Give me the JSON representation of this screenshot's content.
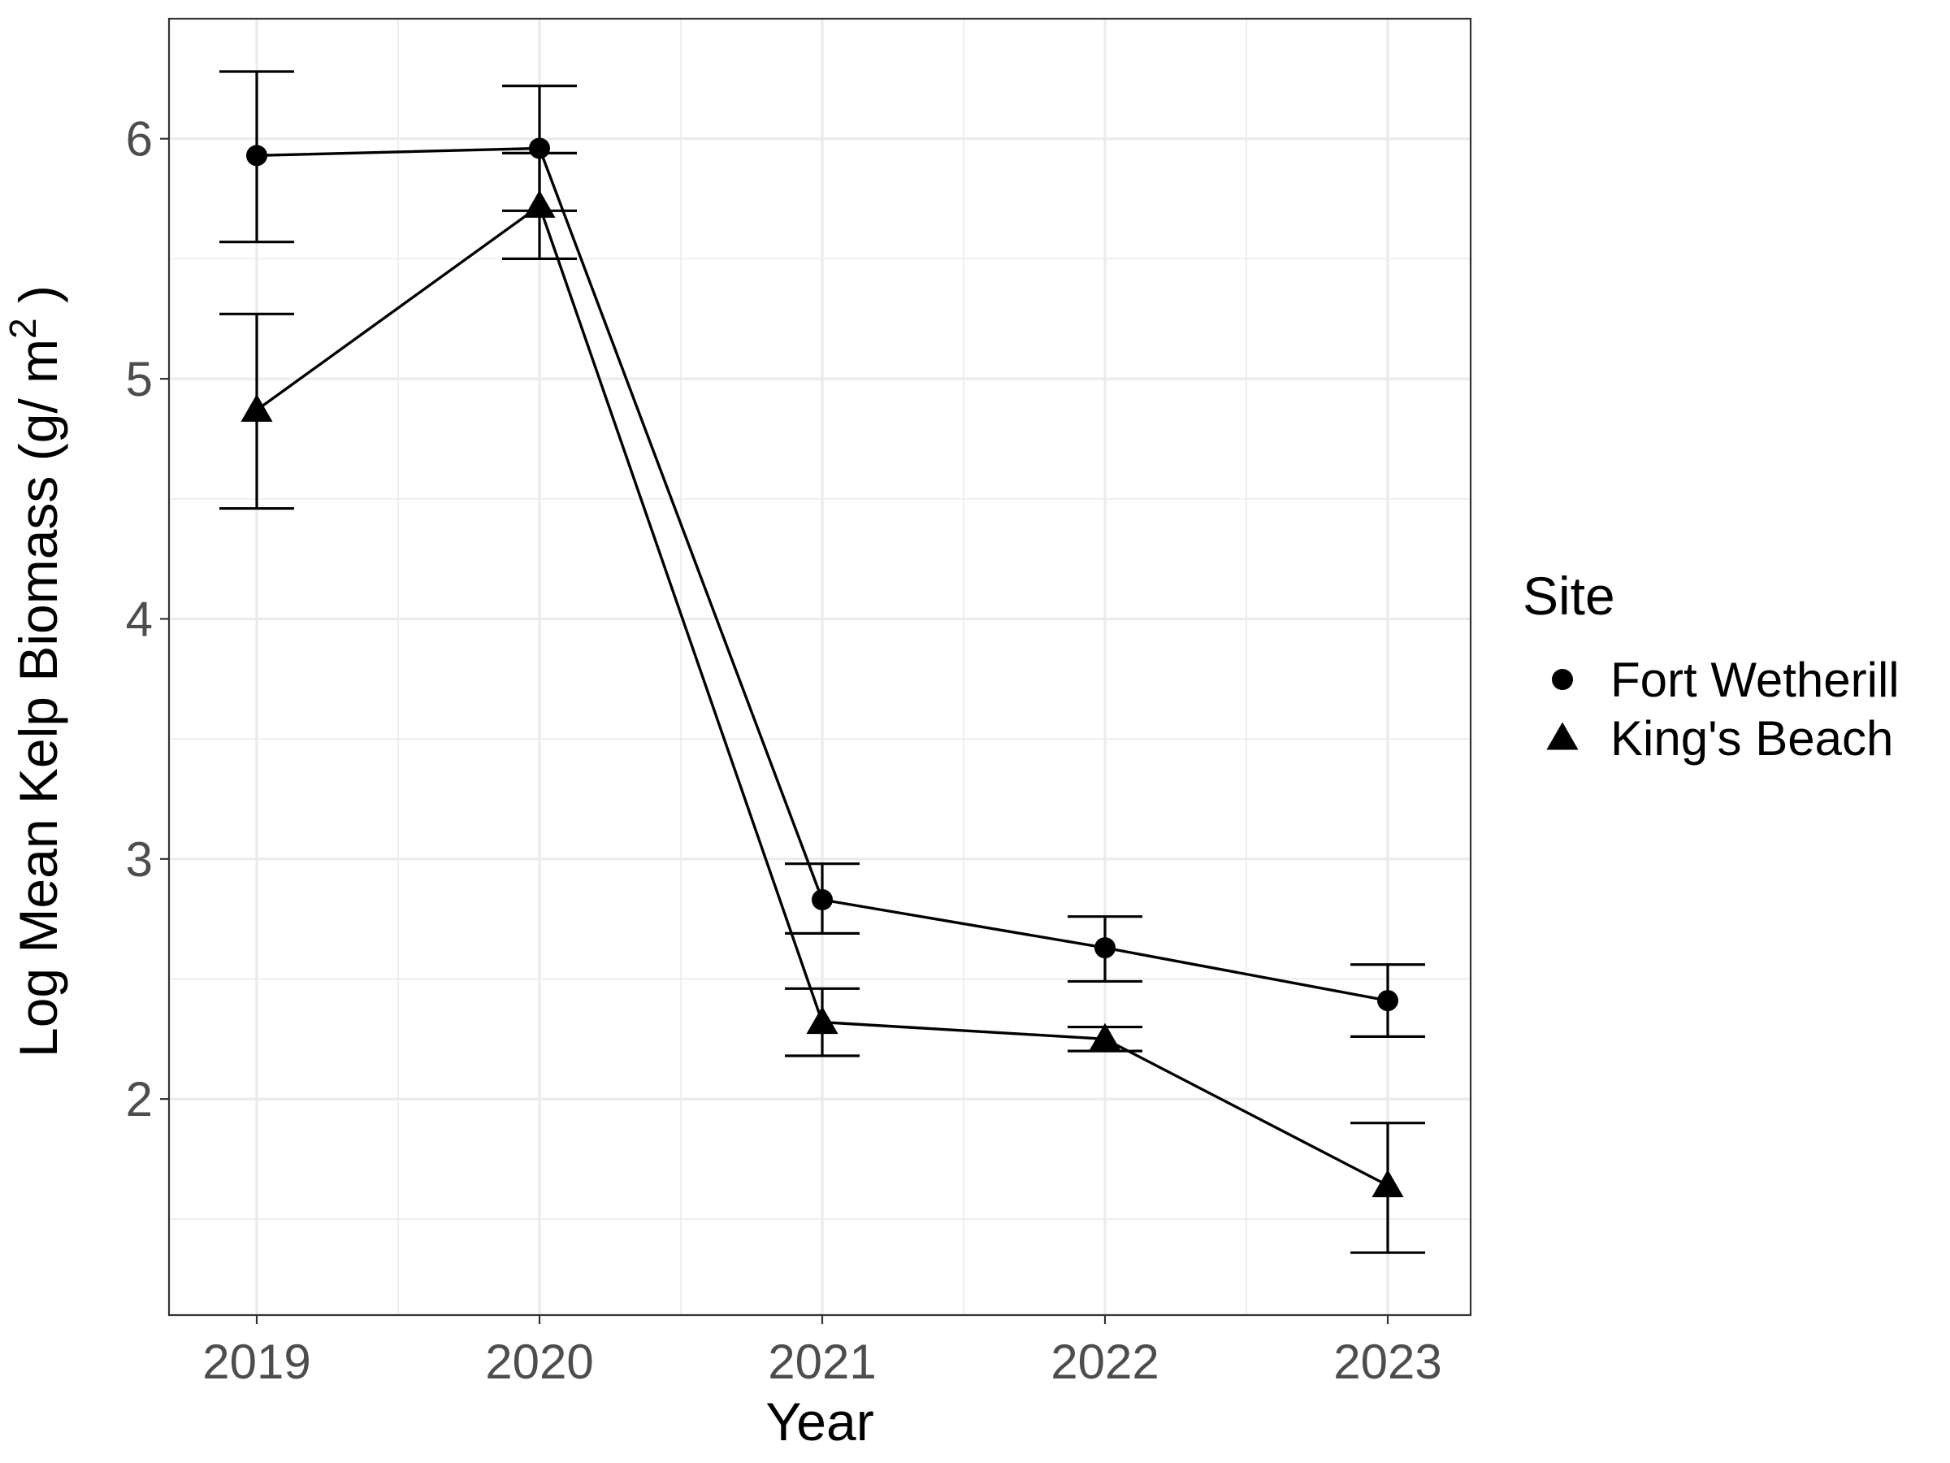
{
  "chart_data": {
    "type": "line",
    "xlabel": "Year",
    "ylabel": "Log Mean Kelp Biomass (g/ m",
    "ylabel_superscript": "2",
    "ylabel_close": " )",
    "categories": [
      "2019",
      "2020",
      "2021",
      "2022",
      "2023"
    ],
    "ylim": [
      1.1,
      6.5
    ],
    "yticks": [
      2,
      3,
      4,
      5,
      6
    ],
    "grid": true,
    "legend": {
      "title": "Site",
      "position": "right"
    },
    "series": [
      {
        "name": "Fort Wetherill",
        "marker": "circle",
        "values": [
          5.93,
          5.96,
          2.83,
          2.63,
          2.41
        ],
        "lower": [
          5.57,
          5.7,
          2.69,
          2.49,
          2.26
        ],
        "upper": [
          6.28,
          6.22,
          2.98,
          2.76,
          2.56
        ]
      },
      {
        "name": "King's Beach",
        "marker": "triangle",
        "values": [
          4.87,
          5.72,
          2.32,
          2.25,
          1.64
        ],
        "lower": [
          4.46,
          5.5,
          2.18,
          2.2,
          1.36
        ],
        "upper": [
          5.27,
          5.94,
          2.46,
          2.3,
          1.9
        ]
      }
    ],
    "colors": {
      "line": "#000000",
      "grid": "#ebebeb",
      "panel_border": "#333333",
      "tick_text": "#4d4d4d"
    }
  }
}
